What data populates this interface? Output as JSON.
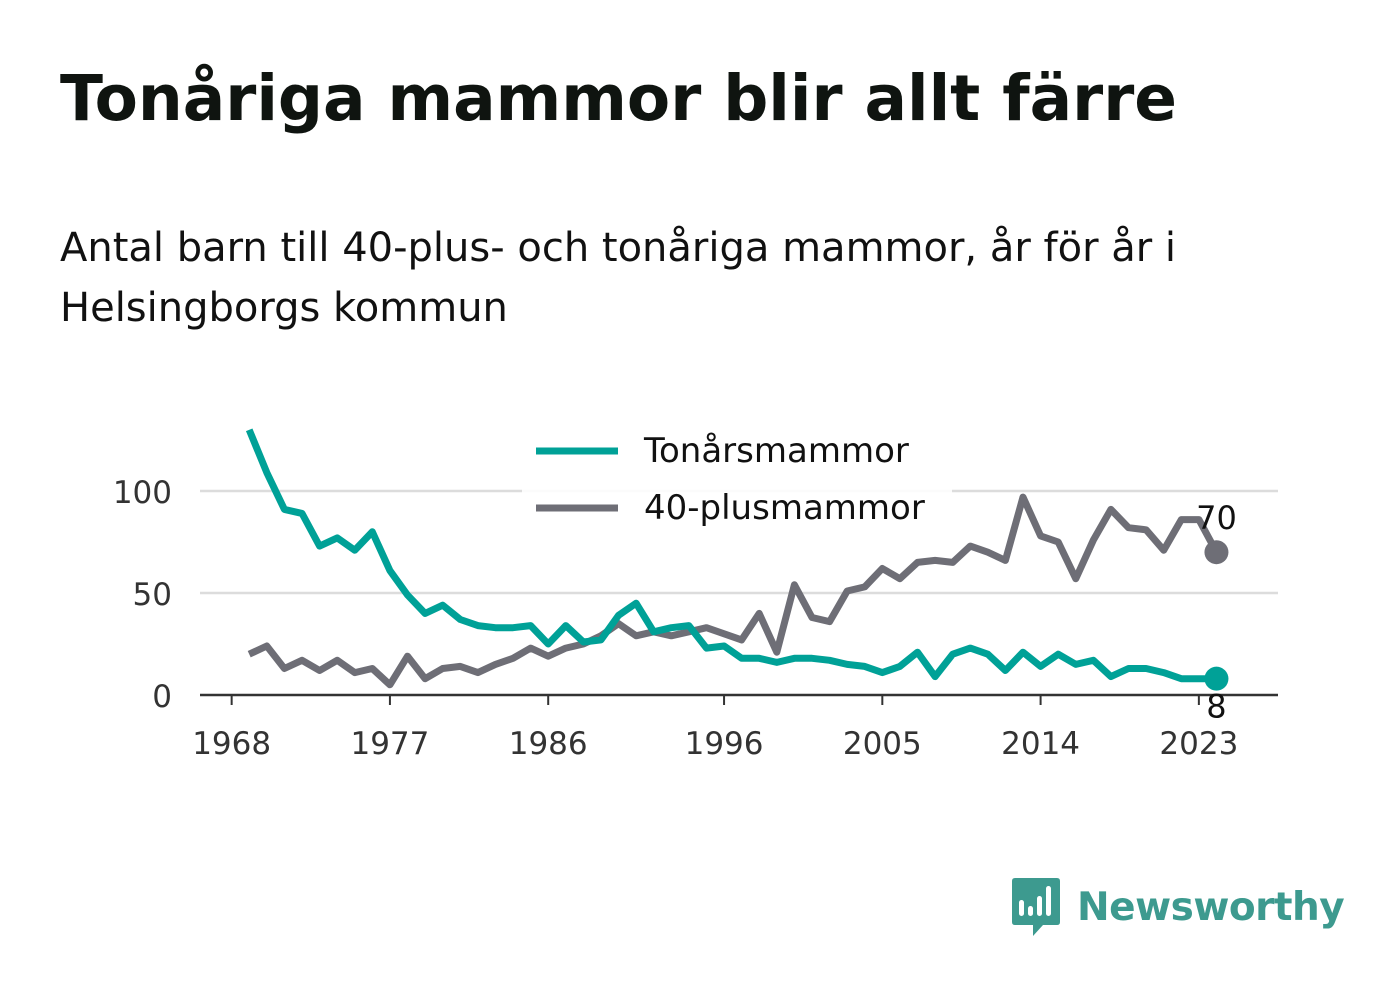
{
  "header": {
    "title": "Tonåriga mammor blir allt färre",
    "subtitle": "Antal barn till 40-plus- och tonåriga mammor, år för år i Helsingborgs kommun"
  },
  "brand": {
    "name": "Newsworthy",
    "icon": "newsworthy-logo-icon",
    "color": "#3d9a8f"
  },
  "chart_data": {
    "type": "line",
    "x": [
      1969,
      1970,
      1971,
      1972,
      1973,
      1974,
      1975,
      1976,
      1977,
      1978,
      1979,
      1980,
      1981,
      1982,
      1983,
      1984,
      1985,
      1986,
      1987,
      1988,
      1989,
      1990,
      1991,
      1992,
      1993,
      1994,
      1995,
      1996,
      1997,
      1998,
      1999,
      2000,
      2001,
      2002,
      2003,
      2004,
      2005,
      2006,
      2007,
      2008,
      2009,
      2010,
      2011,
      2012,
      2013,
      2014,
      2015,
      2016,
      2017,
      2018,
      2019,
      2020,
      2021,
      2022,
      2023,
      2024
    ],
    "series": [
      {
        "name": "Tonårsmammor",
        "color": "#00a197",
        "values": [
          130,
          109,
          91,
          89,
          73,
          77,
          71,
          80,
          61,
          49,
          40,
          44,
          37,
          34,
          33,
          33,
          34,
          25,
          34,
          26,
          27,
          39,
          45,
          31,
          33,
          34,
          23,
          24,
          18,
          18,
          16,
          18,
          18,
          17,
          15,
          14,
          11,
          14,
          21,
          9,
          20,
          23,
          20,
          12,
          21,
          14,
          20,
          15,
          17,
          9,
          13,
          13,
          11,
          8,
          8,
          8
        ],
        "end_label": "8"
      },
      {
        "name": "40-plusmammor",
        "color": "#6e6e76",
        "values": [
          20,
          24,
          13,
          17,
          12,
          17,
          11,
          13,
          5,
          19,
          8,
          13,
          14,
          11,
          15,
          18,
          23,
          19,
          23,
          25,
          29,
          35,
          29,
          31,
          29,
          31,
          33,
          30,
          27,
          40,
          21,
          54,
          38,
          36,
          51,
          53,
          62,
          57,
          65,
          66,
          65,
          73,
          70,
          66,
          97,
          78,
          75,
          57,
          76,
          91,
          82,
          81,
          71,
          86,
          86,
          70
        ],
        "end_label": "70"
      }
    ],
    "xticks": [
      "1968",
      "1977",
      "1986",
      "1996",
      "2005",
      "2014",
      "2023"
    ],
    "xtick_values": [
      1968,
      1977,
      1986,
      1996,
      2005,
      2014,
      2023
    ],
    "yticks": [
      "0",
      "50",
      "100"
    ],
    "ytick_values": [
      0,
      50,
      100
    ],
    "ylim": [
      0,
      130
    ],
    "xlim": [
      1966.2,
      2027.5
    ],
    "grid": "horizontal",
    "legend": "top-center",
    "xlabel": "",
    "ylabel": ""
  }
}
